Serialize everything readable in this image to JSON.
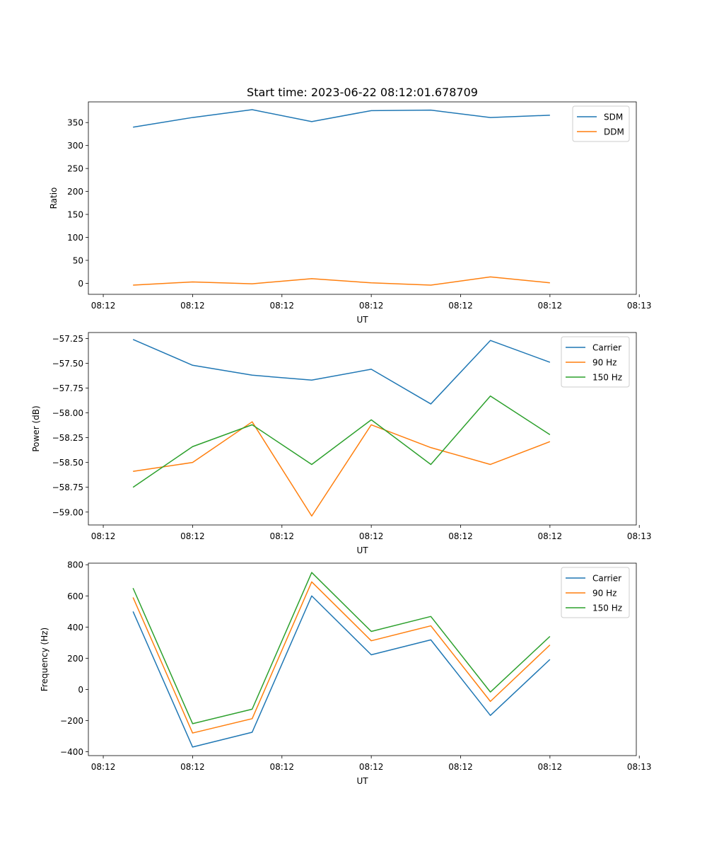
{
  "figure": {
    "title": "Start time: 2023-06-22 08:12:01.678709"
  },
  "chart_data": [
    {
      "type": "line",
      "title": "Start time: 2023-06-22 08:12:01.678709",
      "xlabel": "UT",
      "ylabel": "Ratio",
      "x": [
        0,
        1,
        2,
        3,
        4,
        5,
        6,
        7
      ],
      "xlim": [
        -0.75,
        8.45
      ],
      "x_ticks": [
        {
          "value": -0.5,
          "label": "08:12"
        },
        {
          "value": 1,
          "label": "08:12"
        },
        {
          "value": 2.5,
          "label": "08:12"
        },
        {
          "value": 4,
          "label": "08:12"
        },
        {
          "value": 5.5,
          "label": "08:12"
        },
        {
          "value": 7,
          "label": "08:12"
        },
        {
          "value": 8.5,
          "label": "08:13"
        }
      ],
      "ylim": [
        -24,
        395
      ],
      "y_ticks": [
        {
          "value": 0,
          "label": "0"
        },
        {
          "value": 50,
          "label": "50"
        },
        {
          "value": 100,
          "label": "100"
        },
        {
          "value": 150,
          "label": "150"
        },
        {
          "value": 200,
          "label": "200"
        },
        {
          "value": 250,
          "label": "250"
        },
        {
          "value": 300,
          "label": "300"
        },
        {
          "value": 350,
          "label": "350"
        }
      ],
      "legend": "top-right",
      "grid": false,
      "series": [
        {
          "name": "SDM",
          "color": "#1f77b4",
          "values": [
            340,
            361,
            378,
            352,
            376,
            377,
            361,
            366
          ]
        },
        {
          "name": "DDM",
          "color": "#ff7f0e",
          "values": [
            -4,
            3,
            -1,
            10,
            1,
            -4,
            14,
            1
          ]
        }
      ]
    },
    {
      "type": "line",
      "title": "",
      "xlabel": "UT",
      "ylabel": "Power (dB)",
      "x": [
        0,
        1,
        2,
        3,
        4,
        5,
        6,
        7
      ],
      "xlim": [
        -0.75,
        8.45
      ],
      "x_ticks": [
        {
          "value": -0.5,
          "label": "08:12"
        },
        {
          "value": 1,
          "label": "08:12"
        },
        {
          "value": 2.5,
          "label": "08:12"
        },
        {
          "value": 4,
          "label": "08:12"
        },
        {
          "value": 5.5,
          "label": "08:12"
        },
        {
          "value": 7,
          "label": "08:12"
        },
        {
          "value": 8.5,
          "label": "08:13"
        }
      ],
      "ylim": [
        -59.13,
        -57.19
      ],
      "y_ticks": [
        {
          "value": -57.25,
          "label": "−57.25"
        },
        {
          "value": -57.5,
          "label": "−57.50"
        },
        {
          "value": -57.75,
          "label": "−57.75"
        },
        {
          "value": -58.0,
          "label": "−58.00"
        },
        {
          "value": -58.25,
          "label": "−58.25"
        },
        {
          "value": -58.5,
          "label": "−58.50"
        },
        {
          "value": -58.75,
          "label": "−58.75"
        },
        {
          "value": -59.0,
          "label": "−59.00"
        }
      ],
      "legend": "top-right",
      "grid": false,
      "series": [
        {
          "name": "Carrier",
          "color": "#1f77b4",
          "values": [
            -57.26,
            -57.52,
            -57.62,
            -57.67,
            -57.56,
            -57.91,
            -57.27,
            -57.49
          ]
        },
        {
          "name": "90 Hz",
          "color": "#ff7f0e",
          "values": [
            -58.59,
            -58.5,
            -58.09,
            -59.04,
            -58.12,
            -58.35,
            -58.52,
            -58.29
          ]
        },
        {
          "name": "150 Hz",
          "color": "#2ca02c",
          "values": [
            -58.75,
            -58.34,
            -58.12,
            -58.52,
            -58.07,
            -58.52,
            -57.83,
            -58.22
          ]
        }
      ]
    },
    {
      "type": "line",
      "title": "",
      "xlabel": "UT",
      "ylabel": "Frequency (Hz)",
      "x": [
        0,
        1,
        2,
        3,
        4,
        5,
        6,
        7
      ],
      "xlim": [
        -0.75,
        8.45
      ],
      "x_ticks": [
        {
          "value": -0.5,
          "label": "08:12"
        },
        {
          "value": 1,
          "label": "08:12"
        },
        {
          "value": 2.5,
          "label": "08:12"
        },
        {
          "value": 4,
          "label": "08:12"
        },
        {
          "value": 5.5,
          "label": "08:12"
        },
        {
          "value": 7,
          "label": "08:12"
        },
        {
          "value": 8.5,
          "label": "08:13"
        }
      ],
      "ylim": [
        -425,
        810
      ],
      "y_ticks": [
        {
          "value": -400,
          "label": "−400"
        },
        {
          "value": -200,
          "label": "−200"
        },
        {
          "value": 0,
          "label": "0"
        },
        {
          "value": 200,
          "label": "200"
        },
        {
          "value": 400,
          "label": "400"
        },
        {
          "value": 600,
          "label": "600"
        },
        {
          "value": 800,
          "label": "800"
        }
      ],
      "legend": "top-right",
      "grid": false,
      "series": [
        {
          "name": "Carrier",
          "color": "#1f77b4",
          "values": [
            500,
            -370,
            -275,
            600,
            222,
            318,
            -167,
            192
          ]
        },
        {
          "name": "90 Hz",
          "color": "#ff7f0e",
          "values": [
            590,
            -280,
            -188,
            690,
            312,
            408,
            -77,
            285
          ]
        },
        {
          "name": "150 Hz",
          "color": "#2ca02c",
          "values": [
            650,
            -220,
            -127,
            750,
            372,
            468,
            -17,
            340
          ]
        }
      ]
    }
  ]
}
